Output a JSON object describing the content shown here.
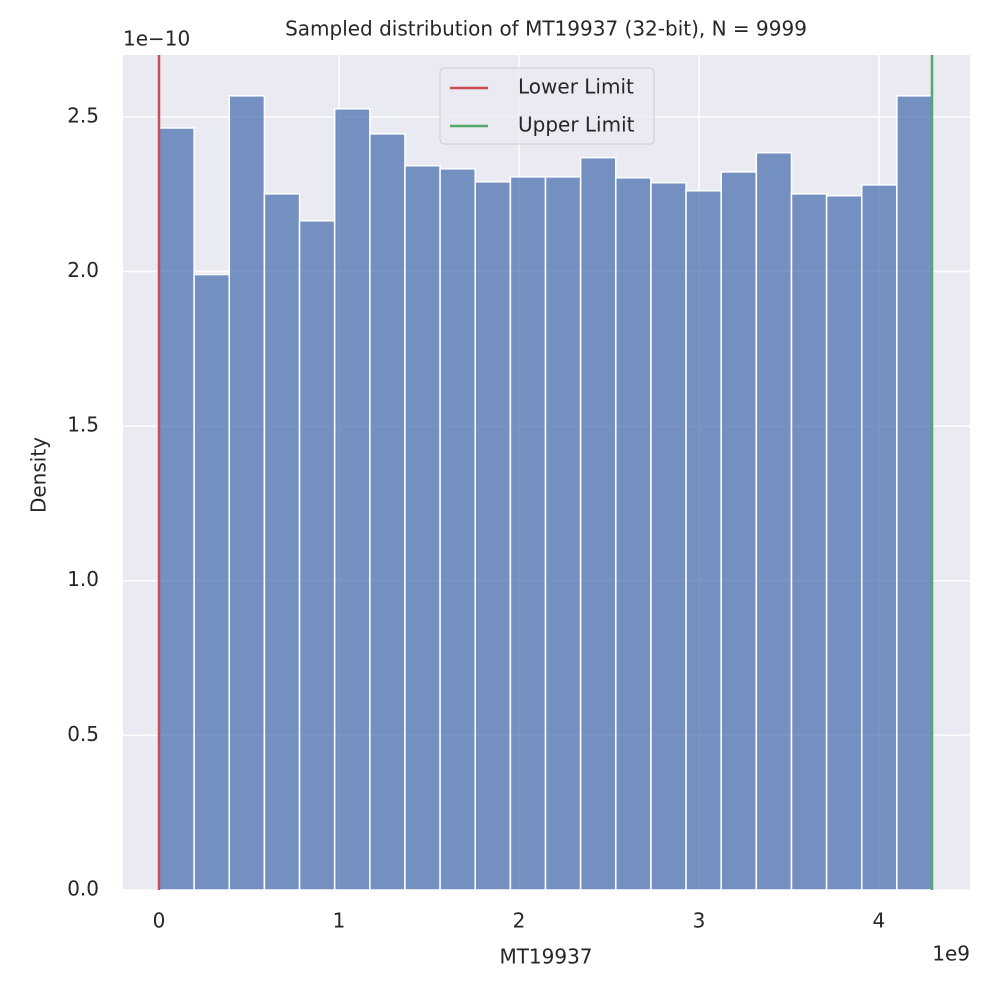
{
  "chart_data": {
    "type": "histogram",
    "title": "Sampled distribution of MT19937 (32-bit), N = 9999",
    "x_label": "MT19937",
    "y_label": "Density",
    "x_offset_label": "1e9",
    "y_offset_label": "1e−10",
    "bins": [
      0,
      0.1952,
      0.3905,
      0.5857,
      0.7809,
      0.9761,
      1.1714,
      1.3666,
      1.5618,
      1.757,
      1.9523,
      2.1475,
      2.3427,
      2.5379,
      2.7332,
      2.9284,
      3.1236,
      3.3188,
      3.5141,
      3.7093,
      3.9045,
      4.0997,
      4.295
    ],
    "values": [
      2.464,
      1.99,
      2.568,
      2.251,
      2.164,
      2.526,
      2.445,
      2.342,
      2.332,
      2.29,
      2.306,
      2.306,
      2.368,
      2.303,
      2.287,
      2.261,
      2.322,
      2.384,
      2.251,
      2.245,
      2.28,
      2.568
    ],
    "color": "#4c72b0",
    "vlines": [
      {
        "name": "Lower Limit",
        "color": "#c44e52",
        "x": 0
      },
      {
        "name": "Upper Limit",
        "color": "#55a868",
        "x": 4.295
      }
    ],
    "xlim": [
      -0.2,
      4.506
    ],
    "ylim": [
      0,
      2.7
    ],
    "xticks": [
      0,
      1,
      2,
      3,
      4
    ],
    "yticks": [
      {
        "value": 0,
        "label": "0.0"
      },
      0.5,
      {
        "value": 1,
        "label": "1.0"
      },
      1.5,
      {
        "value": 2,
        "label": "2.0"
      },
      2.5
    ],
    "grid": true,
    "legend": "upper center"
  }
}
